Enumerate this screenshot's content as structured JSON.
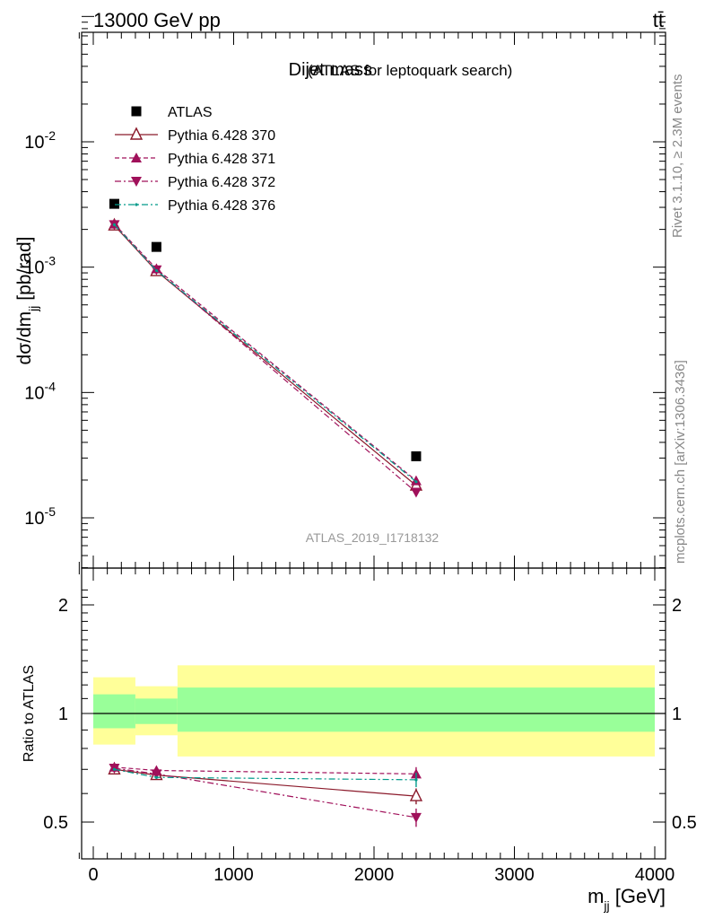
{
  "header": {
    "energy_label": "13000 GeV pp",
    "process_label": "tt̄"
  },
  "side_labels": {
    "rivet": "Rivet 3.1.10, ≥ 2.3M events",
    "mcplots": "mcplots.cern.ch [arXiv:1306.3436]"
  },
  "watermark": "ATLAS_2019_I1718132",
  "chart_data": [
    {
      "panel": "main",
      "type": "line",
      "title": "Dijet mass",
      "subtitle": "(ATLAS for leptoquark search)",
      "ylabel": "dσ/dm_jj [pb/rad]",
      "yscale": "log",
      "ylim": [
        4e-06,
        0.1
      ],
      "xlim": [
        -100,
        4000
      ],
      "yticks": [
        1e-05,
        0.0001,
        0.001,
        0.01
      ],
      "ytick_labels": [
        "10^-5",
        "10^-4",
        "10^-3",
        "10^-2"
      ],
      "x": [
        150,
        450,
        2300
      ],
      "series": [
        {
          "name": "ATLAS",
          "color": "#000000",
          "marker": "square",
          "dash": "none",
          "values": [
            0.0032,
            0.00145,
            3.1e-05
          ]
        },
        {
          "name": "Pythia 6.428 370",
          "color": "#8b1a2b",
          "marker": "triangle-up-open",
          "dash": "solid",
          "values": [
            0.00215,
            0.00093,
            1.81e-05
          ]
        },
        {
          "name": "Pythia 6.428 371",
          "color": "#a0105a",
          "marker": "triangle-up",
          "dash": "dashed",
          "values": [
            0.00221,
            0.00097,
            1.98e-05
          ]
        },
        {
          "name": "Pythia 6.428 372",
          "color": "#a0105a",
          "marker": "triangle-down",
          "dash": "dashdot",
          "values": [
            0.00218,
            0.00095,
            1.6e-05
          ]
        },
        {
          "name": "Pythia 6.428 376",
          "color": "#009a8a",
          "marker": "dot",
          "dash": "dashdot",
          "values": [
            0.00218,
            0.00094,
            1.94e-05
          ]
        }
      ]
    },
    {
      "panel": "ratio",
      "type": "line",
      "ylabel": "Ratio to ATLAS",
      "xlabel": "m_jj [GeV]",
      "ylim": [
        0.45,
        2.35
      ],
      "xlim": [
        -100,
        4000
      ],
      "yticks": [
        0.5,
        1,
        2
      ],
      "ytick_labels": [
        "0.5",
        "1",
        "2"
      ],
      "xticks": [
        0,
        1000,
        2000,
        3000,
        4000
      ],
      "xtick_labels": [
        "0",
        "1000",
        "2000",
        "3000",
        "4000"
      ],
      "x": [
        150,
        450,
        2300
      ],
      "bands": [
        {
          "x0": 0,
          "x1": 300,
          "green": [
            0.91,
            1.13
          ],
          "yellow": [
            0.82,
            1.26
          ]
        },
        {
          "x0": 300,
          "x1": 600,
          "green": [
            0.935,
            1.1
          ],
          "yellow": [
            0.87,
            1.19
          ]
        },
        {
          "x0": 600,
          "x1": 4000,
          "green": [
            0.89,
            1.18
          ],
          "yellow": [
            0.76,
            1.36
          ]
        }
      ],
      "series": [
        {
          "name": "Pythia 6.428 370",
          "values": [
            0.7,
            0.675,
            0.59
          ],
          "errors": [
            0.01,
            0.01,
            0.03
          ]
        },
        {
          "name": "Pythia 6.428 371",
          "values": [
            0.71,
            0.695,
            0.68
          ],
          "errors": [
            0.01,
            0.01,
            0.03
          ]
        },
        {
          "name": "Pythia 6.428 372",
          "values": [
            0.705,
            0.68,
            0.515
          ],
          "errors": [
            0.01,
            0.01,
            0.03
          ]
        },
        {
          "name": "Pythia 6.428 376",
          "values": [
            0.7,
            0.665,
            0.655
          ],
          "errors": [
            0.01,
            0.01,
            0.03
          ]
        }
      ]
    }
  ]
}
